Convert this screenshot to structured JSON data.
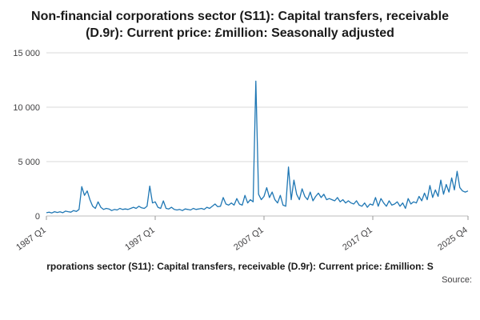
{
  "title": "Non-financial corporations sector (S11): Capital transfers, receivable (D.9r): Current price: £million: Seasonally adjusted",
  "footer": {
    "caption": "rporations sector (S11): Capital transfers, receivable (D.9r): Current price: £million: S",
    "source_label": "Source:"
  },
  "chart_data": {
    "type": "line",
    "title": "Non-financial corporations sector (S11): Capital transfers, receivable (D.9r): Current price: £million: Seasonally adjusted",
    "xlabel": "",
    "ylabel": "",
    "line_color": "#1f77b4",
    "grid_color": "#d9d9d9",
    "ylim": [
      0,
      15000
    ],
    "yticks": [
      {
        "value": 0,
        "label": "0"
      },
      {
        "value": 5000,
        "label": "5 000"
      },
      {
        "value": 10000,
        "label": "10 000"
      },
      {
        "value": 15000,
        "label": "15 000"
      }
    ],
    "x_start": "1987 Q1",
    "x_end": "2025 Q4",
    "xticks": [
      {
        "index": 0,
        "label": "1987 Q1"
      },
      {
        "index": 40,
        "label": "1997 Q1"
      },
      {
        "index": 80,
        "label": "2007 Q1"
      },
      {
        "index": 120,
        "label": "2017 Q1"
      },
      {
        "index": 155,
        "label": "2025 Q4"
      }
    ],
    "values": [
      300,
      350,
      280,
      400,
      320,
      380,
      300,
      450,
      400,
      350,
      500,
      420,
      600,
      2700,
      1900,
      2300,
      1500,
      900,
      700,
      1300,
      800,
      600,
      700,
      650,
      500,
      600,
      550,
      700,
      600,
      650,
      600,
      700,
      800,
      700,
      900,
      750,
      700,
      900,
      2750,
      1200,
      1300,
      800,
      700,
      1390,
      700,
      650,
      800,
      600,
      550,
      600,
      500,
      650,
      600,
      550,
      700,
      600,
      650,
      700,
      600,
      800,
      700,
      900,
      1100,
      850,
      900,
      1700,
      1100,
      1000,
      1200,
      1000,
      1600,
      1100,
      1000,
      1900,
      1200,
      1500,
      1300,
      12400,
      2000,
      1500,
      1800,
      2600,
      1700,
      2200,
      1500,
      1200,
      1900,
      1000,
      900,
      4500,
      1500,
      3300,
      2000,
      1500,
      2500,
      1800,
      1500,
      2200,
      1400,
      1800,
      2100,
      1700,
      2000,
      1500,
      1600,
      1500,
      1400,
      1700,
      1300,
      1500,
      1200,
      1400,
      1200,
      1100,
      1400,
      1000,
      900,
      1200,
      800,
      1100,
      1000,
      1700,
      900,
      1600,
      1200,
      900,
      1400,
      1000,
      1100,
      1300,
      900,
      1200,
      700,
      1600,
      1100,
      1300,
      1200,
      1800,
      1400,
      2100,
      1500,
      2800,
      1700,
      2400,
      1800,
      3300,
      2000,
      2900,
      2200,
      3500,
      2400,
      4100,
      2600,
      2300,
      2200,
      2300
    ]
  }
}
